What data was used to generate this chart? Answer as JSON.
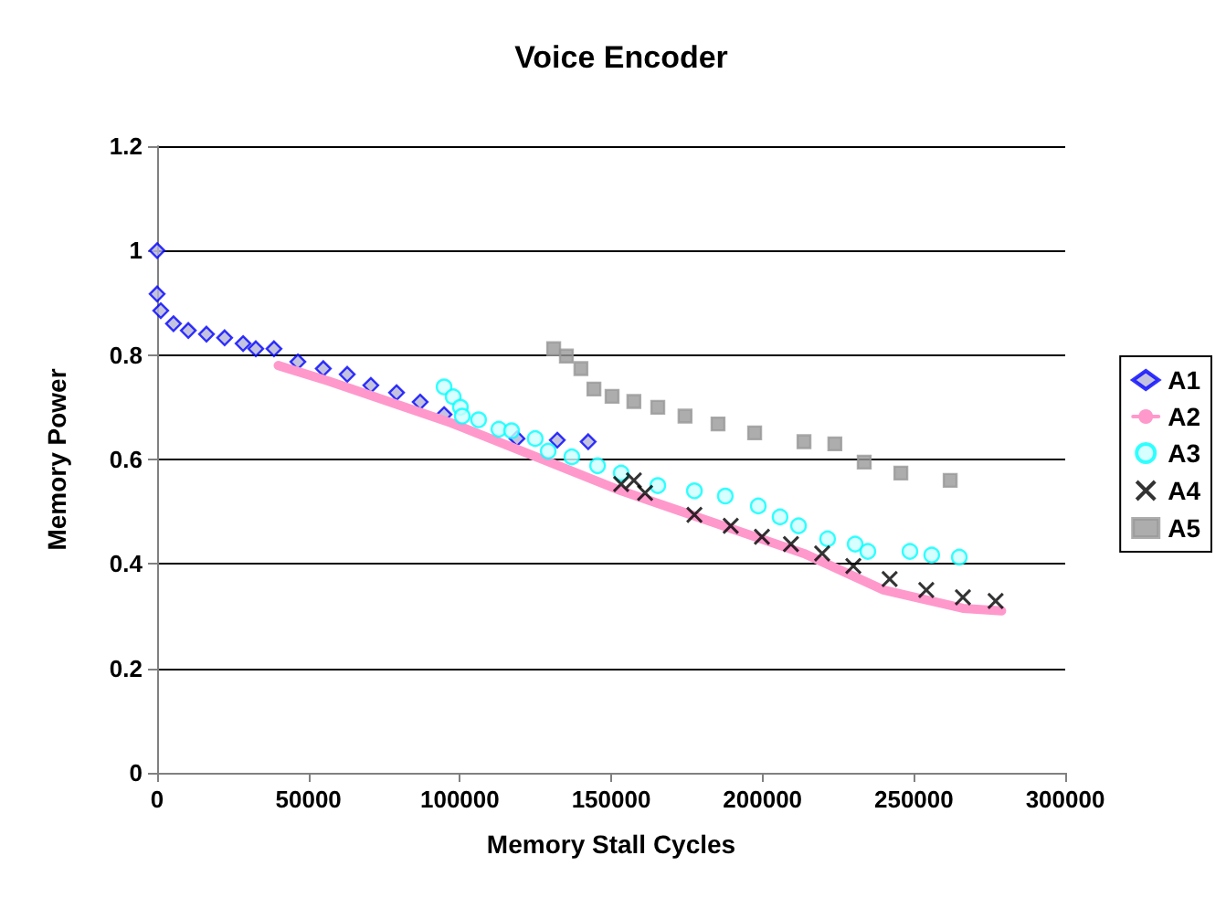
{
  "chart_data": {
    "type": "scatter",
    "title": "Voice Encoder",
    "xlabel": "Memory Stall Cycles",
    "ylabel": "Memory Power",
    "xlim": [
      0,
      300000
    ],
    "xticks": [
      0,
      50000,
      100000,
      150000,
      200000,
      250000,
      300000
    ],
    "ylim": [
      0,
      1.2
    ],
    "yticks": [
      0,
      0.2,
      0.4,
      0.6,
      0.8,
      1,
      1.2
    ],
    "grid": "y",
    "legend": "right",
    "series": [
      {
        "name": "A1",
        "color": "#0000ff",
        "marker": "diamond",
        "x": [
          0,
          0,
          1200,
          5400,
          10300,
          16300,
          22300,
          28400,
          32600,
          38600,
          46500,
          54900,
          62800,
          70600,
          79100,
          86900,
          94800,
          118900,
          132200,
          142400
        ],
        "values": [
          1.0,
          0.917,
          0.885,
          0.86,
          0.847,
          0.84,
          0.833,
          0.822,
          0.812,
          0.812,
          0.787,
          0.774,
          0.763,
          0.742,
          0.728,
          0.71,
          0.686,
          0.64,
          0.637,
          0.634
        ]
      },
      {
        "name": "A2",
        "type": "line",
        "color": "#ff99cc",
        "marker": "none",
        "x": [
          40000,
          56700,
          97200,
          153300,
          213700,
          240000,
          266200,
          279000
        ],
        "values": [
          0.78,
          0.75,
          0.67,
          0.54,
          0.42,
          0.35,
          0.315,
          0.31
        ]
      },
      {
        "name": "A3",
        "color": "#00ffff",
        "marker": "circle",
        "x": [
          94800,
          97800,
          100200,
          100800,
          106200,
          112900,
          117100,
          124900,
          129200,
          137000,
          145500,
          153300,
          165400,
          177500,
          187700,
          198600,
          205800,
          211900,
          221500,
          230600,
          234800,
          248700,
          255900,
          265000
        ],
        "values": [
          0.739,
          0.72,
          0.7,
          0.683,
          0.676,
          0.658,
          0.655,
          0.64,
          0.616,
          0.605,
          0.588,
          0.574,
          0.55,
          0.54,
          0.53,
          0.511,
          0.49,
          0.473,
          0.448,
          0.438,
          0.424,
          0.424,
          0.417,
          0.413
        ]
      },
      {
        "name": "A4",
        "color": "#000000",
        "marker": "cross",
        "x": [
          153300,
          157500,
          161200,
          177500,
          189500,
          199800,
          209400,
          219700,
          230000,
          242000,
          254100,
          266200,
          277000
        ],
        "values": [
          0.553,
          0.56,
          0.536,
          0.494,
          0.473,
          0.452,
          0.438,
          0.42,
          0.396,
          0.371,
          0.35,
          0.336,
          0.329
        ]
      },
      {
        "name": "A5",
        "color": "#999999",
        "marker": "square",
        "x": [
          131000,
          135200,
          140000,
          144300,
          150300,
          157500,
          165400,
          174400,
          185300,
          197400,
          213700,
          223900,
          233600,
          245700,
          262000
        ],
        "values": [
          0.812,
          0.798,
          0.774,
          0.735,
          0.721,
          0.711,
          0.7,
          0.683,
          0.668,
          0.651,
          0.634,
          0.63,
          0.595,
          0.574,
          0.56
        ]
      }
    ]
  }
}
